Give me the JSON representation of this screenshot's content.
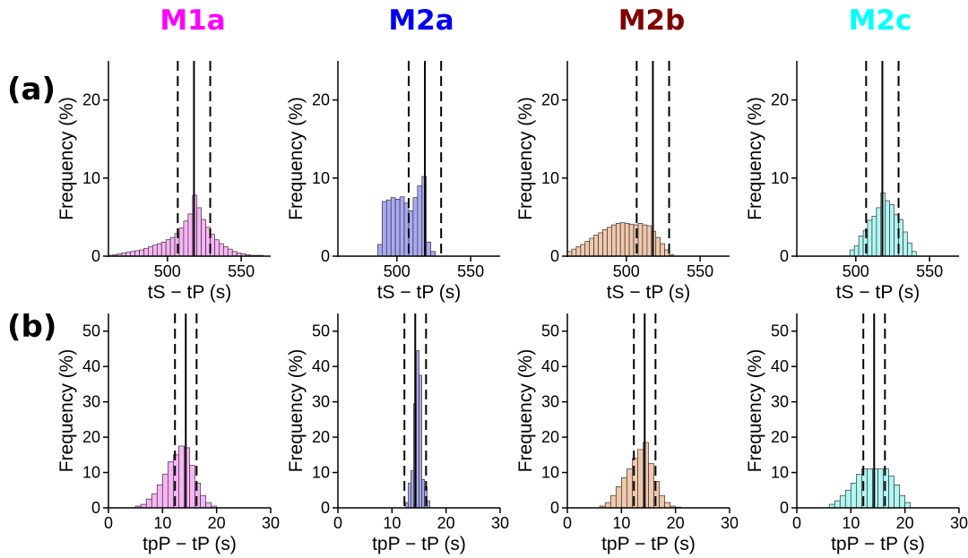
{
  "figure": {
    "models": [
      {
        "name": "M1a",
        "color": "#ff00ff",
        "fill": "#f9b4f6"
      },
      {
        "name": "M2a",
        "color": "#0000ee",
        "fill": "#a9a9f3"
      },
      {
        "name": "M2b",
        "color": "#800000",
        "fill": "#f0c8ac"
      },
      {
        "name": "M2c",
        "color": "#00ffff",
        "fill": "#b0f7f4"
      }
    ],
    "row_labels": [
      "(a)",
      "(b)"
    ]
  },
  "chart_data": [
    {
      "type": "bar",
      "panel": "a-M1a",
      "xlabel": "tS − tP (s)",
      "ylabel": "Frequency (%)",
      "xlim": [
        460,
        570
      ],
      "ylim": [
        0,
        25
      ],
      "xticks": [
        500,
        550
      ],
      "yticks": [
        0,
        10,
        20
      ],
      "bin_width": 3,
      "bins": [
        460,
        463,
        466,
        469,
        472,
        475,
        478,
        481,
        484,
        487,
        490,
        493,
        496,
        499,
        502,
        505,
        508,
        511,
        514,
        517,
        520,
        523,
        526,
        529,
        532,
        535,
        538,
        541,
        544,
        547,
        550,
        553,
        556,
        559,
        562
      ],
      "values": [
        0.1,
        0.2,
        0.3,
        0.4,
        0.5,
        0.6,
        0.7,
        0.8,
        1.0,
        1.2,
        1.4,
        1.6,
        1.8,
        2.1,
        2.4,
        2.9,
        3.6,
        4.5,
        5.4,
        7.8,
        6.2,
        4.7,
        3.7,
        2.8,
        2.1,
        1.6,
        1.2,
        0.9,
        0.6,
        0.4,
        0.3,
        0.2,
        0.1,
        0.1,
        0.1
      ],
      "lines": {
        "solid": 518,
        "dashed": [
          507,
          529
        ]
      }
    },
    {
      "type": "bar",
      "panel": "a-M2a",
      "xlabel": "tS − tP (s)",
      "ylabel": "Frequency (%)",
      "xlim": [
        460,
        570
      ],
      "ylim": [
        0,
        25
      ],
      "xticks": [
        500,
        550
      ],
      "yticks": [
        0,
        10,
        20
      ],
      "bin_width": 3,
      "bins": [
        487,
        490,
        493,
        496,
        499,
        502,
        505,
        508,
        511,
        514,
        517,
        520,
        523
      ],
      "values": [
        1.5,
        7.0,
        7.2,
        7.5,
        7.3,
        7.6,
        6.8,
        5.8,
        7.5,
        9.0,
        10.2,
        1.8,
        0.6
      ],
      "lines": {
        "solid": 519,
        "dashed": [
          508,
          530
        ]
      }
    },
    {
      "type": "bar",
      "panel": "a-M2b",
      "xlabel": "tS − tP (s)",
      "ylabel": "Frequency (%)",
      "xlim": [
        460,
        570
      ],
      "ylim": [
        0,
        25
      ],
      "xticks": [
        500,
        550
      ],
      "yticks": [
        0,
        10,
        20
      ],
      "bin_width": 3,
      "bins": [
        460,
        463,
        466,
        469,
        472,
        475,
        478,
        481,
        484,
        487,
        490,
        493,
        496,
        499,
        502,
        505,
        508,
        511,
        514,
        517,
        520,
        523,
        526,
        529
      ],
      "values": [
        0.6,
        0.9,
        1.2,
        1.5,
        1.9,
        2.3,
        2.7,
        3.0,
        3.4,
        3.7,
        4.0,
        4.2,
        4.3,
        4.2,
        4.1,
        4.0,
        4.2,
        4.0,
        3.9,
        3.2,
        2.4,
        1.6,
        0.8,
        0.2
      ],
      "lines": {
        "solid": 518,
        "dashed": [
          507,
          529
        ]
      }
    },
    {
      "type": "bar",
      "panel": "a-M2c",
      "xlabel": "tS − tP (s)",
      "ylabel": "Frequency (%)",
      "xlim": [
        460,
        570
      ],
      "ylim": [
        0,
        25
      ],
      "xticks": [
        500,
        550
      ],
      "yticks": [
        0,
        10,
        20
      ],
      "bin_width": 3,
      "bins": [
        496,
        499,
        502,
        505,
        508,
        511,
        514,
        517,
        520,
        523,
        526,
        529,
        532,
        535,
        538
      ],
      "values": [
        0.8,
        1.3,
        2.6,
        3.3,
        4.6,
        5.1,
        6.2,
        8.1,
        7.1,
        6.6,
        5.3,
        4.7,
        3.1,
        1.7,
        0.6
      ],
      "lines": {
        "solid": 518,
        "dashed": [
          507,
          529
        ]
      }
    },
    {
      "type": "bar",
      "panel": "b-M1a",
      "xlabel": "tpP − tP (s)",
      "ylabel": "Frequency (%)",
      "xlim": [
        0,
        30
      ],
      "ylim": [
        0,
        55
      ],
      "xticks": [
        0,
        10,
        20,
        30
      ],
      "yticks": [
        0,
        10,
        20,
        30,
        40,
        50
      ],
      "bin_width": 1,
      "bins": [
        5,
        6,
        7,
        8,
        9,
        10,
        11,
        12,
        13,
        14,
        15,
        16,
        17,
        18,
        19
      ],
      "values": [
        0.5,
        1.0,
        2.5,
        4.0,
        6.5,
        9.5,
        13.0,
        15.0,
        17.5,
        17.0,
        12.0,
        7.0,
        3.5,
        1.5,
        0.5
      ],
      "lines": {
        "solid": 14.3,
        "dashed": [
          12.3,
          16.3
        ]
      }
    },
    {
      "type": "bar",
      "panel": "b-M2a",
      "xlabel": "tpP − tP (s)",
      "ylabel": "Frequency (%)",
      "xlim": [
        0,
        30
      ],
      "ylim": [
        0,
        55
      ],
      "xticks": [
        0,
        10,
        20,
        30
      ],
      "yticks": [
        0,
        10,
        20,
        30,
        40,
        50
      ],
      "bin_width": 0.5,
      "bins": [
        12.5,
        13,
        13.5,
        14,
        14.5,
        15,
        15.5,
        16,
        16.5
      ],
      "values": [
        1.5,
        7.0,
        10.5,
        29.5,
        44.5,
        37.5,
        8.0,
        6.0,
        2.0
      ],
      "lines": {
        "solid": 14.3,
        "dashed": [
          12.3,
          16.3
        ]
      }
    },
    {
      "type": "bar",
      "panel": "b-M2b",
      "xlabel": "tpP − tP (s)",
      "ylabel": "Frequency (%)",
      "xlim": [
        0,
        30
      ],
      "ylim": [
        0,
        55
      ],
      "xticks": [
        0,
        10,
        20,
        30
      ],
      "yticks": [
        0,
        10,
        20,
        30,
        40,
        50
      ],
      "bin_width": 1,
      "bins": [
        6,
        7,
        8,
        9,
        10,
        11,
        12,
        13,
        14,
        15,
        16,
        17,
        18,
        19,
        20
      ],
      "values": [
        0.5,
        1.5,
        3.5,
        6.0,
        8.5,
        11.0,
        14.0,
        16.5,
        18.5,
        12.5,
        7.5,
        3.5,
        1.5,
        0.5,
        0.2
      ],
      "lines": {
        "solid": 14.3,
        "dashed": [
          12.3,
          16.3
        ]
      }
    },
    {
      "type": "bar",
      "panel": "b-M2c",
      "xlabel": "tpP − tP (s)",
      "ylabel": "Frequency (%)",
      "xlim": [
        0,
        30
      ],
      "ylim": [
        0,
        55
      ],
      "xticks": [
        0,
        10,
        20,
        30
      ],
      "yticks": [
        0,
        10,
        20,
        30,
        40,
        50
      ],
      "bin_width": 1,
      "bins": [
        6,
        7,
        8,
        9,
        10,
        11,
        12,
        13,
        14,
        15,
        16,
        17,
        18,
        19,
        20
      ],
      "values": [
        1.0,
        2.0,
        3.5,
        5.0,
        7.0,
        9.5,
        11.0,
        11.0,
        11.0,
        11.0,
        11.0,
        9.0,
        6.5,
        3.5,
        1.5
      ],
      "lines": {
        "solid": 14.3,
        "dashed": [
          12.3,
          16.3
        ]
      }
    }
  ]
}
